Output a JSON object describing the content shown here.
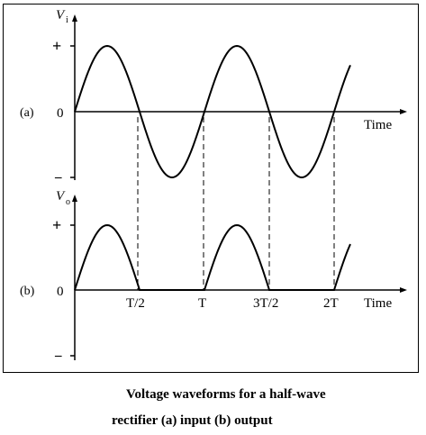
{
  "figure": {
    "panel_a": {
      "label": "(a)",
      "y_axis_label": "V",
      "y_axis_sub": "i",
      "plus_tick": "+",
      "zero_tick": "0",
      "minus_tick": "–",
      "x_axis_label": "Time",
      "waveform": "sine"
    },
    "panel_b": {
      "label": "(b)",
      "y_axis_label": "V",
      "y_axis_sub": "o",
      "plus_tick": "+",
      "zero_tick": "0",
      "minus_tick": "–",
      "x_axis_label": "Time",
      "waveform": "half-wave rectified sine",
      "x_ticks": [
        "T/2",
        "T",
        "3T/2",
        "2T"
      ]
    },
    "caption_line1": "Voltage waveforms for a half-wave",
    "caption_line2": "rectifier (a)  input (b)  output"
  }
}
